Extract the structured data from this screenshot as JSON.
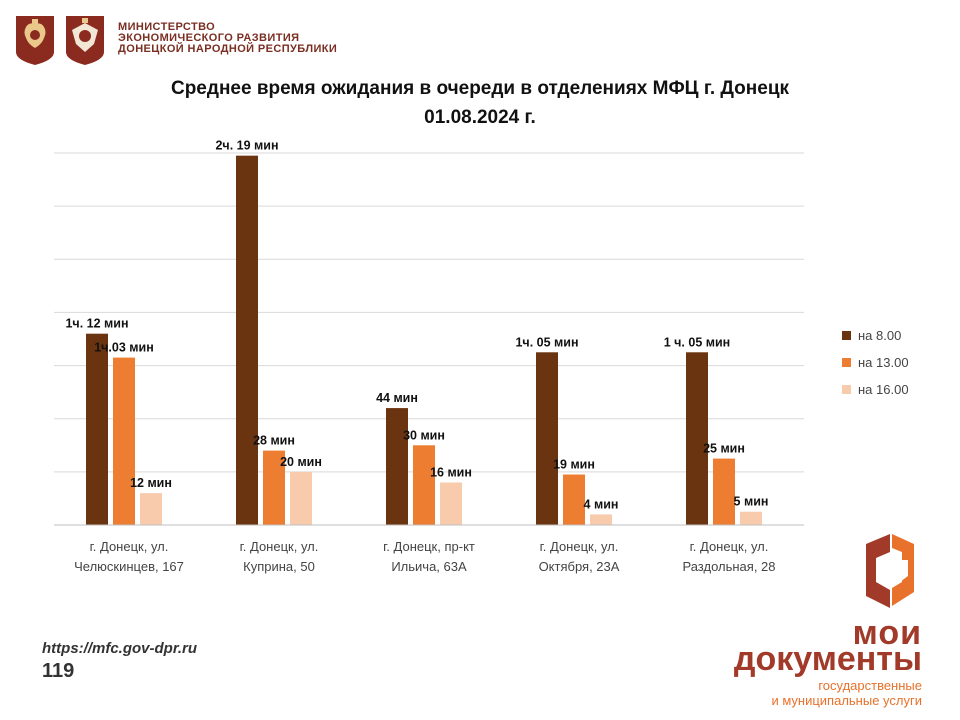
{
  "header": {
    "ministry_lines": [
      "МИНИСТЕРСТВО",
      "ЭКОНОМИЧЕСКОГО РАЗВИТИЯ",
      "ДОНЕЦКОЙ НАРОДНОЙ РЕСПУБЛИКИ"
    ]
  },
  "chart_data": {
    "type": "bar",
    "title": "Среднее время ожидания в очереди в отделениях МФЦ г. Донецк",
    "subtitle": "01.08.2024 г.",
    "categories": [
      [
        "г. Донецк, ул.",
        "Челюскинцев, 167"
      ],
      [
        "г. Донецк, ул.",
        "Куприна, 50"
      ],
      [
        "г. Донецк, пр-кт",
        "Ильича, 63А"
      ],
      [
        "г. Донецк, ул.",
        "Октября, 23А"
      ],
      [
        "г. Донецк, ул.",
        "Раздольная, 28"
      ]
    ],
    "series": [
      {
        "name": "на 8.00",
        "color": "#6b3410",
        "values": [
          72,
          139,
          44,
          65,
          65
        ],
        "labels": [
          "1ч. 12 мин",
          "2ч. 19 мин",
          "44 мин",
          "1ч. 05 мин",
          "1 ч. 05 мин"
        ]
      },
      {
        "name": "на 13.00",
        "color": "#ed7d31",
        "values": [
          63,
          28,
          30,
          19,
          25
        ],
        "labels": [
          "1ч.03 мин",
          "28 мин",
          "30 мин",
          "19 мин",
          "25 мин"
        ]
      },
      {
        "name": "на 16.00",
        "color": "#f8cbad",
        "values": [
          12,
          20,
          16,
          4,
          5
        ],
        "labels": [
          "12 мин",
          "20 мин",
          "16 мин",
          "4 мин",
          "5 мин"
        ]
      }
    ],
    "ylim": [
      0,
      140
    ],
    "grid": true,
    "legend_position": "right"
  },
  "footer": {
    "url": "https://mfc.gov-dpr.ru",
    "page": "119"
  },
  "brand": {
    "line1": "мои",
    "line2": "документы",
    "sub1": "государственные",
    "sub2": "и муниципальные услуги"
  }
}
